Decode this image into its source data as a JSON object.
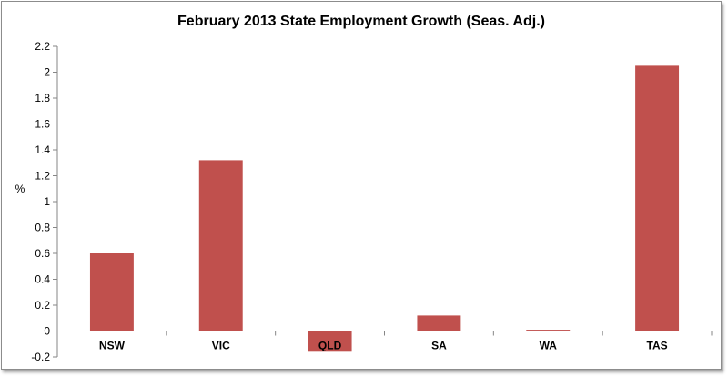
{
  "chart_data": {
    "type": "bar",
    "title": "February 2013 State Employment Growth (Seas. Adj.)",
    "xlabel": "",
    "ylabel": "%",
    "categories": [
      "NSW",
      "VIC",
      "QLD",
      "SA",
      "WA",
      "TAS"
    ],
    "values": [
      0.6,
      1.32,
      -0.16,
      0.12,
      0.01,
      2.05
    ],
    "ylim": [
      -0.2,
      2.2
    ],
    "yticks": [
      -0.2,
      0,
      0.2,
      0.4,
      0.6,
      0.8,
      1,
      1.2,
      1.4,
      1.6,
      1.8,
      2,
      2.2
    ],
    "grid": false,
    "legend": "none",
    "bar_color": "#c0504d"
  }
}
